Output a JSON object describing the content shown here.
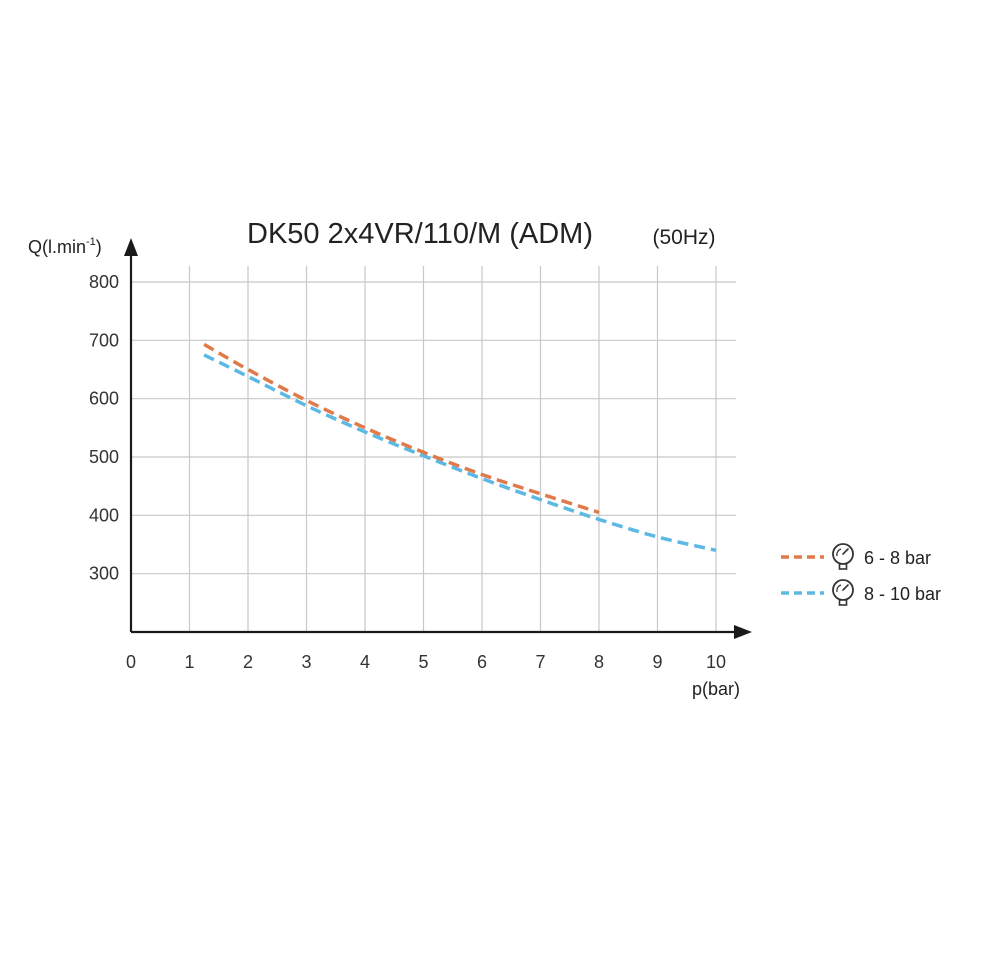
{
  "chart_data": {
    "type": "line",
    "title": "DK50 2x4VR/110/M (ADM)",
    "subtitle": "(50Hz)",
    "xlabel": "p(bar)",
    "ylabel": "Q(l.min",
    "ylabel_sup": "-1",
    "ylabel_close": ")",
    "xlim": [
      0,
      10
    ],
    "ylim": [
      200,
      800
    ],
    "x_ticks": [
      "0",
      "1",
      "2",
      "3",
      "4",
      "5",
      "6",
      "7",
      "8",
      "9",
      "10"
    ],
    "y_ticks": [
      "300",
      "400",
      "500",
      "600",
      "700",
      "800"
    ],
    "grid": true,
    "legend_position": "right",
    "series": [
      {
        "name": "6 - 8 bar",
        "color": "#e07a4a",
        "icon": "pressure-gauge-icon",
        "x": [
          1.25,
          2,
          3,
          4,
          5,
          6,
          7,
          8
        ],
        "y": [
          693,
          650,
          597,
          550,
          508,
          470,
          437,
          405
        ]
      },
      {
        "name": "8 - 10 bar",
        "color": "#5bb9e4",
        "icon": "pressure-gauge-icon",
        "x": [
          1.25,
          2,
          3,
          4,
          5,
          6,
          7,
          8,
          9,
          10
        ],
        "y": [
          675,
          638,
          588,
          543,
          502,
          463,
          427,
          393,
          363,
          340
        ]
      }
    ]
  }
}
